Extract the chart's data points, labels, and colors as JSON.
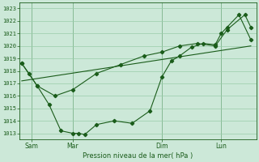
{
  "xlabel": "Pression niveau de la mer( hPa )",
  "background_color": "#cce8d8",
  "grid_color": "#99ccaa",
  "line_color": "#1a5c1a",
  "ylim": [
    1012.5,
    1023.5
  ],
  "yticks": [
    1013,
    1014,
    1015,
    1016,
    1017,
    1018,
    1019,
    1020,
    1021,
    1022,
    1023
  ],
  "xlim": [
    0,
    20
  ],
  "day_labels": [
    "Sam",
    "Mar",
    "Dim",
    "Lun"
  ],
  "day_positions": [
    1.0,
    4.5,
    12.0,
    17.0
  ],
  "vline_positions": [
    1.0,
    4.5,
    12.0,
    17.0
  ],
  "series1_x": [
    0.2,
    0.8,
    1.5,
    2.5,
    3.5,
    4.5,
    5.0,
    5.5,
    6.5,
    8.0,
    9.5,
    11.0,
    12.0,
    12.8,
    13.5,
    14.5,
    15.5,
    16.5,
    17.0,
    17.5,
    18.5,
    19.5
  ],
  "series1_y": [
    1018.6,
    1017.8,
    1016.8,
    1015.3,
    1013.2,
    1013.0,
    1013.0,
    1012.9,
    1013.7,
    1014.0,
    1013.8,
    1014.8,
    1017.5,
    1018.8,
    1019.2,
    1019.9,
    1020.2,
    1020.1,
    1021.0,
    1021.5,
    1022.5,
    1020.5
  ],
  "series2_x": [
    0.2,
    1.5,
    3.0,
    4.5,
    6.5,
    8.5,
    10.5,
    12.0,
    13.5,
    15.0,
    16.5,
    17.5,
    19.0,
    19.5
  ],
  "series2_y": [
    1018.6,
    1016.8,
    1016.0,
    1016.5,
    1017.8,
    1018.5,
    1019.2,
    1019.5,
    1020.0,
    1020.2,
    1020.0,
    1021.3,
    1022.5,
    1021.5
  ],
  "series3_x": [
    0.2,
    19.5
  ],
  "series3_y": [
    1017.2,
    1020.0
  ]
}
